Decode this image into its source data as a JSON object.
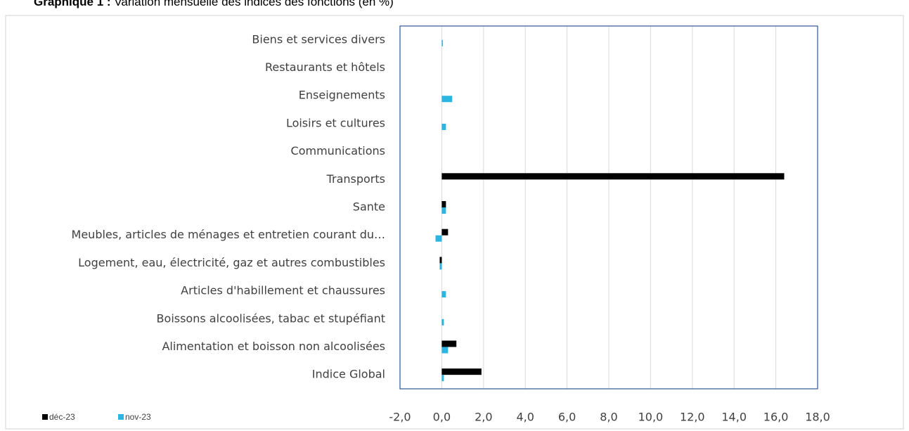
{
  "chart_data": {
    "type": "barh",
    "title_bold": "Graphique 1 :",
    "title": "Variation mensuelle des indices des fonctions (en %)",
    "categories": [
      "Indice Global",
      "Alimentation et boisson non alcoolisées",
      "Boissons alcoolisées, tabac et stupéfiant",
      "Articles d'habillement et chaussures",
      "Logement, eau, électricité, gaz et autres combustibles",
      "Meubles, articles de ménages et entretien courant du…",
      "Sante",
      "Transports",
      "Communications",
      "Loisirs et cultures",
      "Enseignements",
      "Restaurants et hôtels",
      "Biens et services divers"
    ],
    "series": [
      {
        "name": "déc-23",
        "color": "#000000",
        "values": [
          1.9,
          0.7,
          0,
          0,
          -0.1,
          0.3,
          0.2,
          16.4,
          0,
          0,
          0,
          0,
          0
        ]
      },
      {
        "name": "nov-23",
        "color": "#2bb5e0",
        "values": [
          0.1,
          0.3,
          0.1,
          0.2,
          -0.1,
          -0.3,
          0.2,
          0,
          0,
          0.2,
          0.5,
          0,
          0.05
        ]
      }
    ],
    "xlim": [
      -2,
      18
    ],
    "xticks": [
      {
        "value": -2,
        "label": "-2,0"
      },
      {
        "value": 0,
        "label": "0,0"
      },
      {
        "value": 2,
        "label": "2,0"
      },
      {
        "value": 4,
        "label": "4,0"
      },
      {
        "value": 6,
        "label": "6,0"
      },
      {
        "value": 8,
        "label": "8,0"
      },
      {
        "value": 10,
        "label": "10,0"
      },
      {
        "value": 12,
        "label": "12,0"
      },
      {
        "value": 14,
        "label": "14,0"
      },
      {
        "value": 16,
        "label": "16,0"
      },
      {
        "value": 18,
        "label": "18,0"
      }
    ],
    "grid": true,
    "legend": "bottom-left"
  }
}
